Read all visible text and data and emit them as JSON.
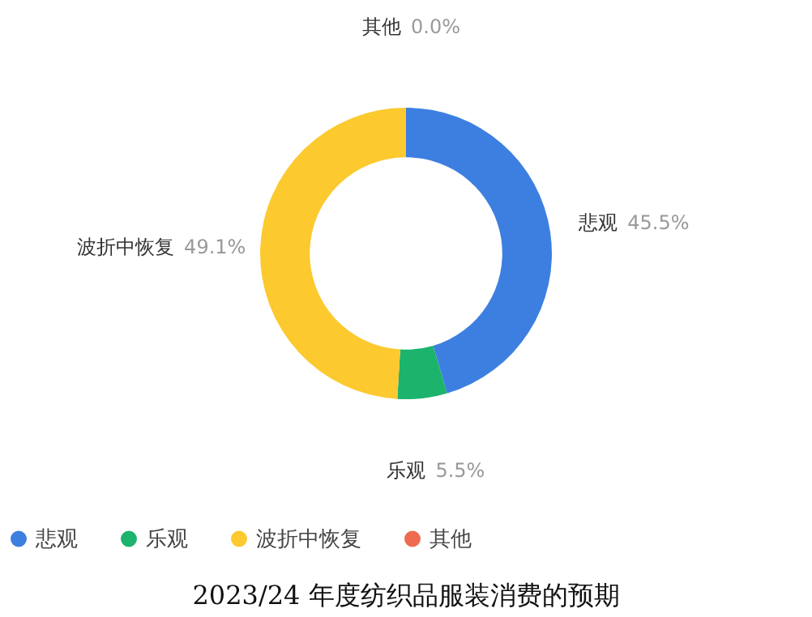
{
  "chart_data": {
    "type": "donut",
    "title": "2023/24 年度纺织品服装消费的预期",
    "categories": [
      "悲观",
      "乐观",
      "波折中恢复",
      "其他"
    ],
    "values": [
      45.5,
      5.5,
      49.1,
      0.0
    ],
    "colors": [
      "#3d7fe0",
      "#1cb36c",
      "#fcc92e",
      "#ef6b4f"
    ],
    "value_labels": [
      "45.5%",
      "5.5%",
      "49.1%",
      "0.0%"
    ],
    "legend": "bottom"
  }
}
